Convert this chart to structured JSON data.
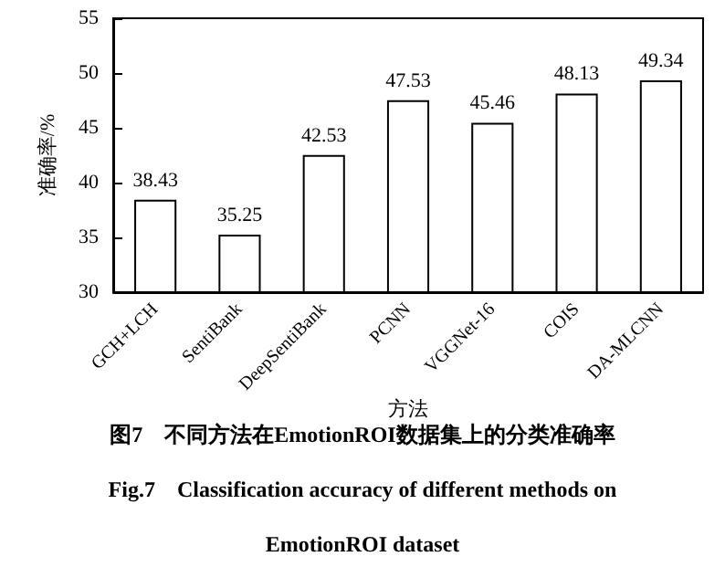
{
  "chart_data": {
    "type": "bar",
    "categories": [
      "GCH+LCH",
      "SentiBank",
      "DeepSentiBank",
      "PCNN",
      "VGGNet-16",
      "COIS",
      "DA-MLCNN"
    ],
    "values": [
      38.43,
      35.25,
      42.53,
      47.53,
      45.46,
      48.13,
      49.34
    ],
    "color": "#ffffff",
    "ylim": [
      30,
      55
    ],
    "yticks": [
      30,
      35,
      40,
      45,
      50,
      55
    ],
    "ylabel": "准确率/%",
    "xlabel": "方法",
    "data_labels": true,
    "annotations": [
      "图7　不同方法在EmotionROI数据集上的分类准确率",
      "Fig.7　Classification accuracy of different methods on",
      "EmotionROI dataset"
    ]
  }
}
